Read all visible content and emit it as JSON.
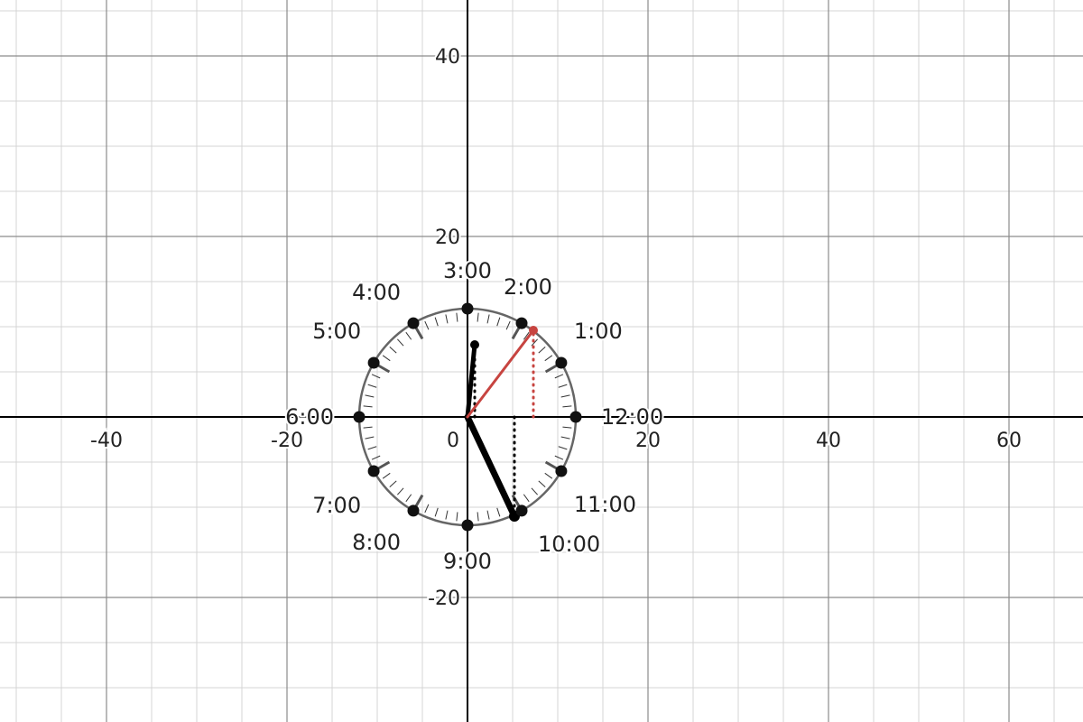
{
  "chart_data": {
    "type": "scatter",
    "title": "",
    "xlabel": "",
    "ylabel": "",
    "xlim": [
      -51.8,
      68.2
    ],
    "ylim": [
      -33.8,
      46.2
    ],
    "grid": true,
    "x_ticks": [
      {
        "value": -40,
        "label": "-40"
      },
      {
        "value": -20,
        "label": "-20"
      },
      {
        "value": 0,
        "label": "0"
      },
      {
        "value": 20,
        "label": "20"
      },
      {
        "value": 40,
        "label": "40"
      },
      {
        "value": 60,
        "label": "60"
      }
    ],
    "y_ticks": [
      {
        "value": 20,
        "label": "20"
      },
      {
        "value": 40,
        "label": "40"
      },
      {
        "value": -20,
        "label": "-20"
      }
    ],
    "clock": {
      "center": [
        0,
        0
      ],
      "radius": 12,
      "face_color": "#666666",
      "tick_color": "#333333",
      "hour_points": [
        {
          "label": "12:00",
          "x": 12,
          "y": 0
        },
        {
          "label": "1:00",
          "x": 10.39,
          "y": 6
        },
        {
          "label": "2:00",
          "x": 6,
          "y": 10.39
        },
        {
          "label": "3:00",
          "x": 0,
          "y": 12
        },
        {
          "label": "4:00",
          "x": -6,
          "y": 10.39
        },
        {
          "label": "5:00",
          "x": -10.39,
          "y": 6
        },
        {
          "label": "6:00",
          "x": -12,
          "y": 0
        },
        {
          "label": "7:00",
          "x": -10.39,
          "y": -6
        },
        {
          "label": "8:00",
          "x": -6,
          "y": -10.39
        },
        {
          "label": "9:00",
          "x": 0,
          "y": -12
        },
        {
          "label": "10:00",
          "x": 6,
          "y": -10.39
        },
        {
          "label": "11:00",
          "x": 10.39,
          "y": -6
        }
      ]
    },
    "hands": [
      {
        "name": "",
        "color": "#000000",
        "width": 7,
        "end": [
          5.2,
          -11
        ]
      },
      {
        "name": "",
        "color": "#000000",
        "width": 5,
        "end": [
          0.8,
          8
        ]
      },
      {
        "name": "",
        "color": "#c74440",
        "width": 3,
        "end": [
          7.3,
          9.6
        ]
      }
    ],
    "projections": [
      {
        "color": "#000000",
        "from": [
          5.2,
          0
        ],
        "to": [
          5.2,
          -11
        ]
      },
      {
        "color": "#000000",
        "from": [
          0.8,
          0
        ],
        "to": [
          0.8,
          8
        ]
      },
      {
        "color": "#c74440",
        "from": [
          7.3,
          0
        ],
        "to": [
          7.3,
          9.6
        ]
      }
    ],
    "colors": {
      "axis": "#000000",
      "major_grid": "#8c8c8c",
      "minor_grid": "#d4d4d4",
      "accent": "#c74440"
    }
  }
}
